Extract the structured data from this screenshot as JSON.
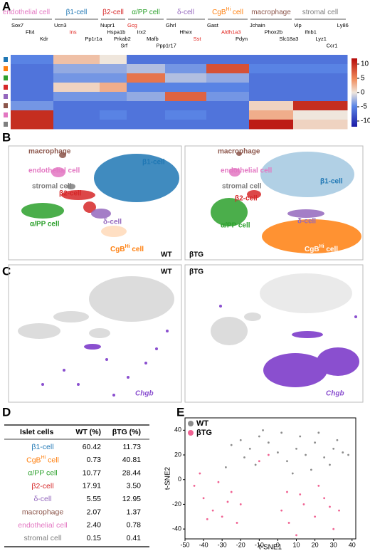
{
  "panel_labels": [
    "A",
    "B",
    "C",
    "D",
    "E"
  ],
  "heatmap": {
    "clusters": [
      {
        "name": "endothelial cell",
        "color": "#e377c2",
        "genes": [
          "Sox7",
          "Flt4",
          "Kdr"
        ]
      },
      {
        "name": "β1-cell",
        "color": "#1f77b4",
        "genes": [
          "Ucn3",
          {
            "name": "Ins",
            "color": "#e0201b"
          },
          "Pp1r1a"
        ]
      },
      {
        "name": "β2-cell",
        "color": "#d62728",
        "genes": [
          "Nupr1",
          "Hspa1b",
          "Prkab2",
          "Srf"
        ]
      },
      {
        "name": "α/PP cell",
        "color": "#2ca02c",
        "genes": [
          {
            "name": "Gcg",
            "color": "#e0201b"
          },
          "Irx2",
          "Mafb",
          "Ppp1r17"
        ]
      },
      {
        "name": "δ-cell",
        "color": "#9467bd",
        "genes": [
          "Ghrl",
          "Hhex",
          {
            "name": "Sst",
            "color": "#e0201b"
          }
        ]
      },
      {
        "name": "CgB",
        "sup": "Hi",
        "tail": " cell",
        "color": "#ff7f0e",
        "genes": [
          "Gast",
          {
            "name": "Aldh1a3",
            "color": "#e0201b"
          },
          "Pdyn"
        ]
      },
      {
        "name": "macrophage",
        "color": "#8c564b",
        "genes": [
          "Jchain",
          "Phox2b",
          "Slc18a3"
        ]
      },
      {
        "name": "stromal cell",
        "color": "#7f7f7f",
        "genes": [
          "Vip",
          "Ifnb1",
          "Lyz1",
          "Ccr1",
          "Ly86"
        ]
      }
    ],
    "row_colors": [
      "#1f77b4",
      "#ff7f0e",
      "#2ca02c",
      "#d62728",
      "#9467bd",
      "#8c564b",
      "#e377c2",
      "#7f7f7f"
    ],
    "values": [
      [
        -5,
        2,
        0,
        -6,
        -6,
        -6,
        -6,
        -6
      ],
      [
        -6,
        -3,
        -3,
        -2,
        -4,
        8,
        -5,
        -5
      ],
      [
        -6,
        -4,
        -4,
        6,
        -2,
        -3,
        -6,
        -6
      ],
      [
        -6,
        1,
        3,
        -5,
        -5,
        -5,
        -6,
        -6
      ],
      [
        -6,
        -4,
        -4,
        -3,
        7,
        -4,
        -6,
        -6
      ],
      [
        -4,
        -6,
        -6,
        -6,
        -6,
        -6,
        1,
        10
      ],
      [
        10,
        -6,
        -5,
        -6,
        -5,
        -6,
        3,
        0
      ],
      [
        10,
        -6,
        -6,
        -6,
        -6,
        -6,
        11,
        1
      ]
    ],
    "colorbar_lim": [
      -12,
      12
    ],
    "colorbar_ticks": [
      10,
      5,
      0,
      -5,
      -10
    ]
  },
  "tsne": {
    "wt": "WT",
    "btg": "βTG",
    "gene": "Chgb"
  },
  "table": {
    "header": [
      "Islet cells",
      "WT (%)",
      "βTG (%)"
    ],
    "rows": [
      {
        "label": "β1-cell",
        "color": "#1f77b4",
        "wt": "60.42",
        "btg": "11.73"
      },
      {
        "label": "CgB",
        "sup": "Hi",
        "tail": " cell",
        "color": "#ff7f0e",
        "wt": "0.73",
        "btg": "40.81"
      },
      {
        "label": "α/PP cell",
        "color": "#2ca02c",
        "wt": "10.77",
        "btg": "28.44"
      },
      {
        "label": "β2-cell",
        "color": "#d62728",
        "wt": "17.91",
        "btg": "3.50"
      },
      {
        "label": "δ-cell",
        "color": "#9467bd",
        "wt": "5.55",
        "btg": "12.95"
      },
      {
        "label": "macrophage",
        "color": "#8c564b",
        "wt": "2.07",
        "btg": "1.37"
      },
      {
        "label": "endothelial cell",
        "color": "#e377c2",
        "wt": "2.40",
        "btg": "0.78"
      },
      {
        "label": "stromal cell",
        "color": "#7f7f7f",
        "wt": "0.15",
        "btg": "0.41"
      }
    ]
  },
  "chart_data": {
    "type": "scatter",
    "xlabel": "t-SNE1",
    "ylabel": "t-SNE2",
    "xlim": [
      -50,
      42
    ],
    "ylim": [
      -48,
      50
    ],
    "xticks": [
      -50,
      -40,
      -30,
      -20,
      -10,
      0,
      10,
      20,
      30,
      40
    ],
    "yticks": [
      40,
      20,
      0,
      -20,
      -40
    ],
    "legend": "top-left",
    "series": [
      {
        "name": "WT",
        "color": "#8c8c8c",
        "x": [
          -25,
          -20,
          -15,
          -10,
          -5,
          0,
          5,
          10,
          15,
          20,
          25,
          30,
          35,
          -28,
          -12,
          8,
          18,
          28,
          38,
          -8,
          2,
          12,
          22,
          32,
          -18
        ],
        "y": [
          28,
          32,
          25,
          35,
          30,
          22,
          15,
          25,
          20,
          30,
          18,
          25,
          22,
          10,
          12,
          5,
          8,
          12,
          20,
          40,
          38,
          35,
          38,
          32,
          18
        ]
      },
      {
        "name": "βTG",
        "color": "#f06292",
        "x": [
          -45,
          -40,
          -35,
          -30,
          -25,
          -20,
          -42,
          -38,
          -32,
          -27,
          -22,
          2,
          6,
          10,
          14,
          20,
          25,
          30,
          33,
          5,
          12,
          22,
          28,
          -10,
          -5
        ],
        "y": [
          -5,
          -15,
          -25,
          -30,
          -10,
          -20,
          5,
          -32,
          -2,
          -18,
          -35,
          -25,
          -35,
          -45,
          -20,
          -30,
          -15,
          -40,
          -25,
          -10,
          -12,
          -5,
          -22,
          15,
          20
        ]
      }
    ]
  }
}
